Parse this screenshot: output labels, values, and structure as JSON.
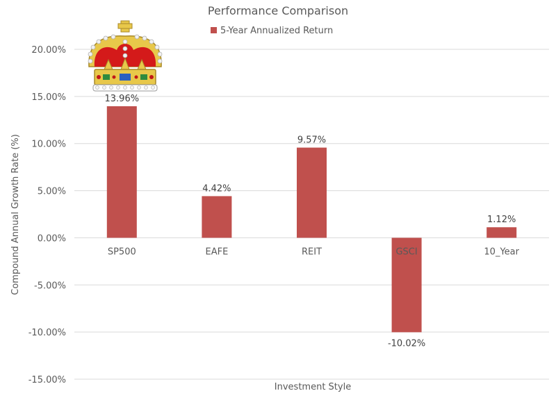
{
  "chart_data": {
    "type": "bar",
    "title": "Performance Comparison",
    "xlabel": "Investment Style",
    "ylabel": "Compound Annual Growth Rate (%)",
    "categories": [
      "SP500",
      "EAFE",
      "REIT",
      "GSCI",
      "10_Year"
    ],
    "series": [
      {
        "name": "5-Year Annualized Return",
        "values": [
          13.96,
          4.42,
          9.57,
          -10.02,
          1.12
        ]
      }
    ],
    "data_labels": [
      "13.96%",
      "4.42%",
      "9.57%",
      "-10.02%",
      "1.12%"
    ],
    "y_ticks": [
      -15,
      -10,
      -5,
      0,
      5,
      10,
      15,
      20
    ],
    "y_tick_labels": [
      "-15.00%",
      "-10.00%",
      "-5.00%",
      "0.00%",
      "5.00%",
      "10.00%",
      "15.00%",
      "20.00%"
    ],
    "ylim": [
      -15,
      20
    ],
    "grid": true,
    "legend_position": "top",
    "bar_color": "#c0504d"
  },
  "decorations": {
    "crown_icon": "crown-icon"
  }
}
